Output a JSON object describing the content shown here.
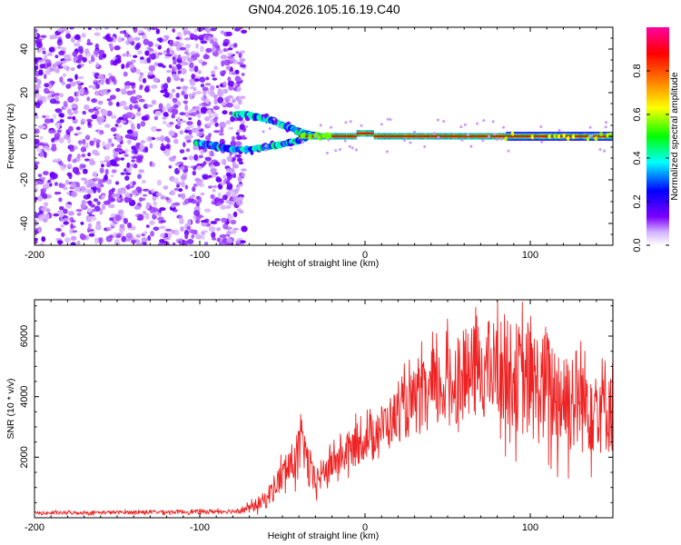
{
  "figure": {
    "title": "GN04.2026.105.16.19.C40"
  },
  "chart_data": [
    {
      "type": "heatmap",
      "title": "GN04.2026.105.16.19.C40",
      "xlabel": "Height of straight line (km)",
      "ylabel": "Frequency (Hz)",
      "xlim": [
        -200,
        150
      ],
      "ylim": [
        -50,
        50
      ],
      "x_ticks": [
        -200,
        -100,
        0,
        100
      ],
      "y_ticks": [
        -40,
        -20,
        0,
        20,
        40
      ],
      "x_tick_labels": [
        "-200",
        "-100",
        "0",
        "100"
      ],
      "y_tick_labels": [
        "-40",
        "-20",
        "0",
        "20",
        "40"
      ],
      "colorbar": {
        "label": "Normalized spectral amplitude",
        "range": [
          0.0,
          1.0
        ],
        "ticks": [
          0.0,
          0.2,
          0.4,
          0.6,
          0.8
        ],
        "tick_labels": [
          "0.0",
          "0.2",
          "0.4",
          "0.6",
          "0.8"
        ],
        "colormap": [
          "#ffffff",
          "#7b00ff",
          "#0000ff",
          "#00ffff",
          "#00ff00",
          "#ffff00",
          "#ff8000",
          "#ff0000",
          "#ff00a0"
        ]
      },
      "regions": [
        {
          "name": "broadband noise",
          "x_range": [
            -200,
            -73
          ],
          "freq_range": [
            -50,
            50
          ],
          "amplitude": 0.1
        },
        {
          "name": "upper branch",
          "points": [
            [
              -78,
              10
            ],
            [
              -72,
              10
            ],
            [
              -66,
              9
            ],
            [
              -60,
              8
            ],
            [
              -55,
              7
            ],
            [
              -50,
              5
            ],
            [
              -45,
              4
            ],
            [
              -40,
              2
            ],
            [
              -35,
              1
            ],
            [
              -30,
              0.3
            ]
          ],
          "amplitude": 0.35
        },
        {
          "name": "lower branch",
          "points": [
            [
              -102,
              -3
            ],
            [
              -95,
              -4
            ],
            [
              -88,
              -5
            ],
            [
              -80,
              -6
            ],
            [
              -70,
              -6
            ],
            [
              -60,
              -5
            ],
            [
              -52,
              -4
            ],
            [
              -46,
              -3
            ],
            [
              -40,
              -2
            ],
            [
              -35,
              -0.5
            ]
          ],
          "amplitude": 0.35
        },
        {
          "name": "main carrier",
          "x_range": [
            -40,
            150
          ],
          "freq": 0,
          "amplitude": 1.0
        }
      ]
    },
    {
      "type": "line",
      "xlabel": "Height of straight line (km)",
      "ylabel": "SNR (10 * v/v)",
      "xlim": [
        -200,
        150
      ],
      "ylim": [
        0,
        7200
      ],
      "x_ticks": [
        -200,
        -100,
        0,
        100
      ],
      "y_ticks": [
        2000,
        4000,
        6000
      ],
      "x_tick_labels": [
        "-200",
        "-100",
        "0",
        "100"
      ],
      "y_tick_labels": [
        "2000",
        "4000",
        "6000"
      ],
      "color": "#ee2222",
      "series": [
        {
          "name": "SNR",
          "x": [
            -200,
            -150,
            -100,
            -80,
            -70,
            -60,
            -55,
            -50,
            -45,
            -40,
            -37,
            -35,
            -32,
            -30,
            -25,
            -20,
            -10,
            0,
            10,
            20,
            30,
            40,
            50,
            60,
            70,
            80,
            90,
            100,
            110,
            120,
            130,
            140,
            150
          ],
          "y": [
            150,
            180,
            200,
            220,
            300,
            600,
            1000,
            1400,
            1700,
            2200,
            2500,
            1800,
            1300,
            1200,
            1500,
            1800,
            2200,
            2600,
            3000,
            3400,
            3800,
            4100,
            4400,
            4700,
            4900,
            4900,
            4700,
            4400,
            4200,
            4000,
            3900,
            3800,
            3700
          ],
          "spread": [
            60,
            60,
            70,
            80,
            150,
            300,
            450,
            550,
            650,
            800,
            900,
            800,
            600,
            500,
            500,
            550,
            650,
            700,
            750,
            900,
            1100,
            1300,
            1400,
            1500,
            1600,
            1700,
            1800,
            1900,
            1900,
            1900,
            1800,
            1700,
            1600
          ]
        }
      ]
    }
  ]
}
